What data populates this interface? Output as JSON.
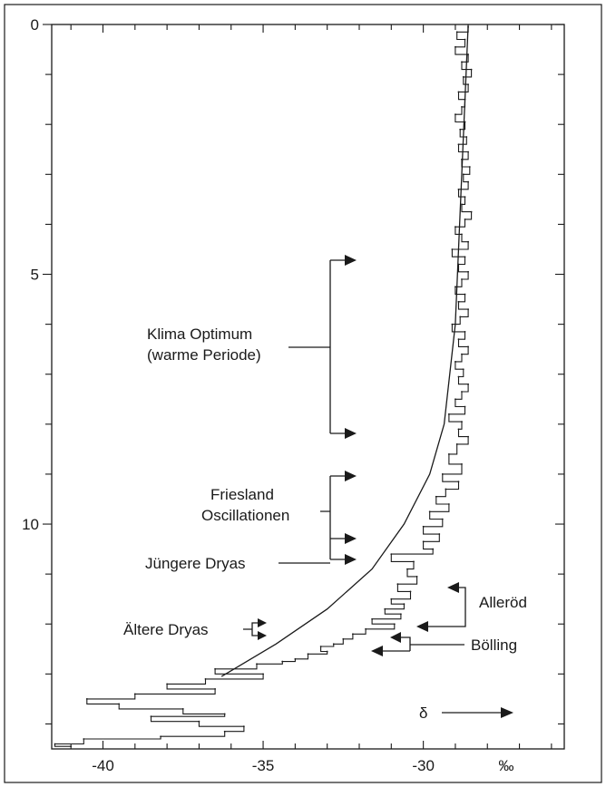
{
  "chart_data": {
    "type": "line",
    "xlabel": "",
    "ylabel": "",
    "xlim": [
      -41.6,
      -25.6
    ],
    "ylim": [
      0,
      14.5
    ],
    "y_inverted": true,
    "x_ticks": [
      -40,
      -35,
      -30
    ],
    "x_tick_labels": [
      "-40",
      "-35",
      "-30"
    ],
    "x_unit_label": "‰",
    "y_ticks": [
      0,
      5,
      10
    ],
    "y_tick_labels": [
      "0",
      "5",
      "10"
    ],
    "grid": false,
    "delta_label": "δ",
    "series": [
      {
        "x": [
          -28.6,
          -28.95,
          -28.7,
          -29.0,
          -28.6,
          -28.8,
          -28.5,
          -28.75,
          -28.6,
          -28.9,
          -28.7,
          -28.8,
          -29.0,
          -28.7,
          -28.85,
          -28.65,
          -28.9,
          -28.6,
          -28.8,
          -28.55,
          -28.75,
          -28.6,
          -28.9,
          -28.7,
          -28.8,
          -28.5,
          -28.7,
          -29.0,
          -28.8,
          -28.6,
          -29.1,
          -28.7,
          -28.9,
          -28.6,
          -28.8,
          -29.0,
          -28.7,
          -28.9,
          -28.6,
          -28.85,
          -29.1,
          -28.7,
          -28.9,
          -28.6,
          -28.8,
          -29.0,
          -28.75,
          -28.9,
          -28.6,
          -28.8,
          -29.0,
          -28.7,
          -29.2,
          -28.8,
          -28.9,
          -28.6,
          -28.95,
          -29.2,
          -28.8,
          -29.4,
          -28.9,
          -29.3,
          -29.6,
          -29.2,
          -29.8,
          -29.4,
          -30.0,
          -29.5,
          -30.0,
          -29.7,
          -31.0,
          -30.3,
          -30.5,
          -30.2,
          -30.8,
          -30.4,
          -31.0,
          -30.6,
          -31.2,
          -30.7,
          -31.6,
          -30.9,
          -31.8,
          -32.2,
          -32.5,
          -32.8,
          -33.2,
          -33.0,
          -33.6,
          -34.0,
          -34.4,
          -35.2,
          -36.5,
          -35.0,
          -36.8,
          -38.0,
          -36.5,
          -39.0,
          -40.5,
          -39.5,
          -37.5,
          -36.2,
          -38.5,
          -37.0,
          -35.6,
          -36.2,
          -38.2,
          -40.6,
          -41.5,
          -41.0
        ],
        "y": [
          0.05,
          0.15,
          0.3,
          0.45,
          0.6,
          0.75,
          0.9,
          1.05,
          1.2,
          1.35,
          1.5,
          1.65,
          1.8,
          1.95,
          2.1,
          2.25,
          2.4,
          2.55,
          2.7,
          2.85,
          3.0,
          3.15,
          3.3,
          3.45,
          3.6,
          3.75,
          3.9,
          4.05,
          4.2,
          4.35,
          4.5,
          4.65,
          4.8,
          4.95,
          5.1,
          5.25,
          5.4,
          5.55,
          5.7,
          5.85,
          6.0,
          6.15,
          6.3,
          6.45,
          6.6,
          6.75,
          6.9,
          7.05,
          7.2,
          7.35,
          7.5,
          7.65,
          7.8,
          7.95,
          8.1,
          8.25,
          8.4,
          8.6,
          8.8,
          9.0,
          9.15,
          9.3,
          9.45,
          9.6,
          9.75,
          9.9,
          10.05,
          10.2,
          10.35,
          10.5,
          10.6,
          10.75,
          10.9,
          11.05,
          11.2,
          11.35,
          11.5,
          11.6,
          11.7,
          11.8,
          11.9,
          12.0,
          12.1,
          12.2,
          12.3,
          12.4,
          12.45,
          12.55,
          12.6,
          12.7,
          12.75,
          12.8,
          12.9,
          13.0,
          13.1,
          13.2,
          13.3,
          13.4,
          13.5,
          13.6,
          13.7,
          13.8,
          13.85,
          13.95,
          14.05,
          14.15,
          14.25,
          14.3,
          14.4,
          14.45
        ]
      }
    ],
    "trend_x": [
      -28.6,
      -28.8,
      -29.0,
      -29.35,
      -29.8,
      -30.6,
      -31.6,
      -33.0,
      -34.6,
      -36.3
    ],
    "trend_y": [
      0.0,
      3.0,
      6.0,
      8.0,
      9.0,
      10.0,
      10.9,
      11.7,
      12.4,
      13.05
    ]
  },
  "annotations": {
    "klima_optimum_line1": "Klima Optimum",
    "klima_optimum_line2": "(warme Periode)",
    "friesland_line1": "Friesland",
    "friesland_line2": "Oscillationen",
    "juengere_dryas": "Jüngere Dryas",
    "aeltere_dryas": "Ältere Dryas",
    "alleroed": "Alleröd",
    "boelling": "Bölling"
  }
}
